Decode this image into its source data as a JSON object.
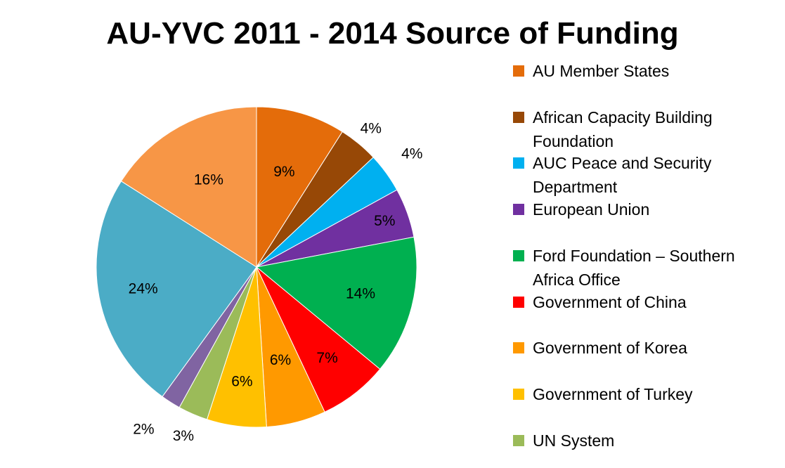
{
  "chart_data": {
    "type": "pie",
    "title": "AU-YVC 2011 - 2014 Source of Funding",
    "legend_position": "right",
    "slices": [
      {
        "name": "AU Member States",
        "value": 9,
        "label": "9%",
        "color": "#E46C0A"
      },
      {
        "name": "African Capacity Building Foundation",
        "value": 4,
        "label": "4%",
        "color": "#974806"
      },
      {
        "name": "AUC Peace and Security Department",
        "value": 4,
        "label": "4%",
        "color": "#00B0F0"
      },
      {
        "name": "European Union",
        "value": 5,
        "label": "5%",
        "color": "#7030A0"
      },
      {
        "name": "Ford Foundation – Southern Africa Office",
        "value": 14,
        "label": "14%",
        "color": "#00B050"
      },
      {
        "name": "Government of China",
        "value": 7,
        "label": "7%",
        "color": "#FF0000"
      },
      {
        "name": "Government of Korea",
        "value": 6,
        "label": "6%",
        "color": "#FF9900"
      },
      {
        "name": "Government of Turkey",
        "value": 6,
        "label": "6%",
        "color": "#FFC000"
      },
      {
        "name": "UN System",
        "value": 3,
        "label": "3%",
        "color": "#9BBB59"
      },
      {
        "name": "",
        "value": 2,
        "label": "2%",
        "color": "#8064A2"
      },
      {
        "name": "",
        "value": 24,
        "label": "24%",
        "color": "#4BACC6"
      },
      {
        "name": "",
        "value": 16,
        "label": "16%",
        "color": "#F79646"
      }
    ]
  }
}
